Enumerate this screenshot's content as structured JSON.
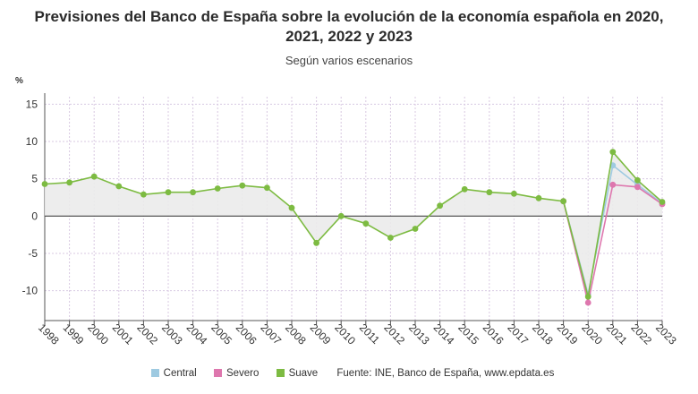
{
  "title_lines": [
    "Previsiones del Banco de España sobre la evolución de la economía española en 2020,",
    "2021, 2022 y 2023"
  ],
  "subtitle": "Según varios escenarios",
  "unit_label": "%",
  "source_text": "Fuente: INE, Banco de España, www.epdata.es",
  "colors": {
    "central": "#9ecae1",
    "severo": "#de77ae",
    "suave": "#7dbb42",
    "grid": "#d8c9e2",
    "zero_line": "#444444",
    "area_fill": "#ebebeb"
  },
  "chart_data": {
    "type": "line",
    "title": "Previsiones del Banco de España sobre la evolución de la economía española en 2020, 2021, 2022 y 2023",
    "subtitle": "Según varios escenarios",
    "ylabel": "%",
    "xlabel": "",
    "ylim": [
      -14,
      16
    ],
    "yticks": [
      -10,
      -5,
      0,
      5,
      10,
      15
    ],
    "categories": [
      "1998",
      "1999",
      "2000",
      "2001",
      "2002",
      "2003",
      "2004",
      "2005",
      "2006",
      "2007",
      "2008",
      "2009",
      "2010",
      "2011",
      "2012",
      "2013",
      "2014",
      "2015",
      "2016",
      "2017",
      "2018",
      "2019",
      "2020",
      "2021",
      "2022",
      "2023"
    ],
    "series": [
      {
        "name": "Suave",
        "values": [
          4.3,
          4.5,
          5.3,
          4.0,
          2.9,
          3.2,
          3.2,
          3.7,
          4.1,
          3.8,
          1.1,
          -3.6,
          0.0,
          -1.0,
          -2.9,
          -1.7,
          1.4,
          3.6,
          3.2,
          3.0,
          2.4,
          2.0,
          -10.8,
          8.6,
          4.8,
          1.9
        ]
      },
      {
        "name": "Central",
        "values": [
          null,
          null,
          null,
          null,
          null,
          null,
          null,
          null,
          null,
          null,
          null,
          null,
          null,
          null,
          null,
          null,
          null,
          null,
          null,
          null,
          null,
          2.0,
          -10.5,
          6.8,
          4.2,
          1.7
        ]
      },
      {
        "name": "Severo",
        "values": [
          null,
          null,
          null,
          null,
          null,
          null,
          null,
          null,
          null,
          null,
          null,
          null,
          null,
          null,
          null,
          null,
          null,
          null,
          null,
          null,
          null,
          2.0,
          -11.6,
          4.2,
          3.9,
          1.6
        ]
      }
    ],
    "grid": true,
    "legend": [
      "Central",
      "Severo",
      "Suave"
    ],
    "legend_position": "bottom"
  }
}
